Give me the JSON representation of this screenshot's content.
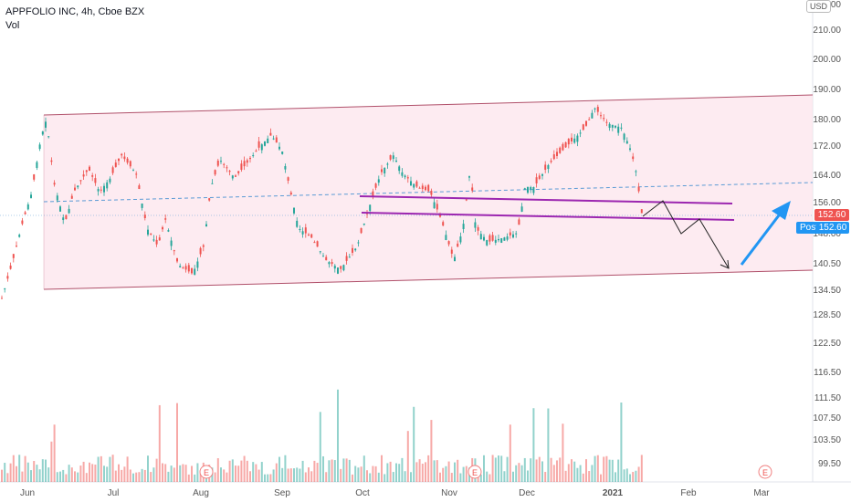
{
  "header": {
    "symbol_title": "APPFOLIO INC, 4h, Cboe BZX",
    "indicator": "Vol"
  },
  "currency_button": {
    "line1": "",
    "line2": "USD"
  },
  "price_axis": {
    "labels": [
      "220.00",
      "210.00",
      "200.00",
      "190.00",
      "180.00",
      "172.00",
      "164.00",
      "156.00",
      "148.00",
      "140.50",
      "134.50",
      "128.50",
      "122.50",
      "116.50",
      "111.50",
      "107.50",
      "103.50",
      "99.50"
    ]
  },
  "time_axis": {
    "labels": [
      "Jun",
      "Jul",
      "Aug",
      "Sep",
      "Oct",
      "Nov",
      "Dec",
      "2021",
      "Feb",
      "Mar"
    ]
  },
  "price_tags": {
    "last": "152.60",
    "post_label": "Post",
    "post": "152.60"
  },
  "earnings_marker": "E",
  "colors": {
    "up": "#26a69a",
    "down": "#ef5350",
    "channel_fill": "#fce4ec",
    "channel_line": "#b0506a",
    "purple": "#9c27b0",
    "arrow_blue": "#2196f3",
    "midline": "#5b9bd5",
    "last_price": "#ef5350",
    "post": "#2196f3"
  }
}
